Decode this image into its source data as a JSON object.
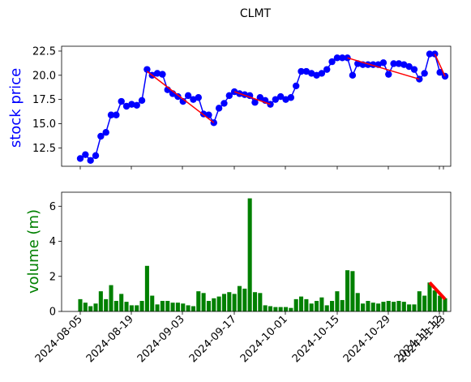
{
  "chart_data": {
    "type": "line",
    "title": "CLMT",
    "x_ticks": [
      "2024-08-05",
      "2024-08-19",
      "2024-09-03",
      "2024-09-17",
      "2024-10-01",
      "2024-10-15",
      "2024-10-29",
      "2024-11-12",
      "2024-11-13"
    ],
    "price": {
      "ylabel": "stock price",
      "ylim": [
        10.6,
        23.0
      ],
      "y_ticks": [
        12.5,
        15.0,
        17.5,
        20.0,
        22.5
      ],
      "line_color": "#0000ff",
      "values": [
        11.4,
        11.8,
        11.2,
        11.7,
        13.7,
        14.1,
        15.9,
        15.9,
        17.3,
        16.8,
        17.0,
        16.9,
        17.4,
        20.6,
        20.0,
        20.2,
        20.1,
        18.5,
        18.1,
        17.8,
        17.3,
        17.9,
        17.5,
        17.7,
        16.0,
        15.9,
        15.1,
        16.6,
        17.1,
        17.9,
        18.3,
        18.1,
        18.0,
        17.9,
        17.2,
        17.7,
        17.4,
        17.0,
        17.5,
        17.8,
        17.5,
        17.7,
        18.9,
        20.4,
        20.4,
        20.2,
        20.0,
        20.2,
        20.6,
        21.4,
        21.8,
        21.8,
        21.8,
        20.0,
        21.2,
        21.1,
        21.1,
        21.1,
        21.1,
        21.3,
        20.1,
        21.2,
        21.2,
        21.1,
        20.9,
        20.6,
        19.6,
        20.2,
        22.2,
        22.2,
        20.3,
        19.9
      ]
    },
    "volume": {
      "ylabel": "volume (m)",
      "ylim": [
        0,
        6.8
      ],
      "y_ticks": [
        0,
        2,
        4,
        6
      ],
      "bar_color": "#008000",
      "values": [
        0.7,
        0.5,
        0.3,
        0.45,
        1.15,
        0.7,
        1.5,
        0.6,
        1.0,
        0.55,
        0.35,
        0.35,
        0.6,
        2.6,
        0.9,
        0.4,
        0.6,
        0.6,
        0.5,
        0.5,
        0.45,
        0.35,
        0.3,
        1.15,
        1.05,
        0.6,
        0.75,
        0.85,
        1.0,
        1.1,
        1.0,
        1.45,
        1.3,
        6.45,
        1.1,
        1.05,
        0.35,
        0.3,
        0.25,
        0.25,
        0.25,
        0.2,
        0.7,
        0.85,
        0.7,
        0.45,
        0.6,
        0.8,
        0.35,
        0.6,
        1.15,
        0.65,
        2.35,
        2.3,
        1.05,
        0.45,
        0.6,
        0.5,
        0.45,
        0.55,
        0.6,
        0.55,
        0.6,
        0.55,
        0.4,
        0.4,
        1.15,
        0.9,
        1.65,
        1.2,
        0.9,
        0.75
      ]
    },
    "trend_color": "#ff0000",
    "price_trend_segments": [
      [
        [
          13,
          20.4
        ],
        [
          26,
          15.1
        ]
      ],
      [
        [
          30,
          18.3
        ],
        [
          37,
          17.0
        ]
      ],
      [
        [
          52,
          21.8
        ],
        [
          66,
          19.6
        ]
      ],
      [
        [
          69,
          22.2
        ],
        [
          71,
          19.9
        ]
      ]
    ],
    "volume_trend_segment": [
      [
        68,
        1.65
      ],
      [
        71,
        0.7
      ]
    ]
  }
}
